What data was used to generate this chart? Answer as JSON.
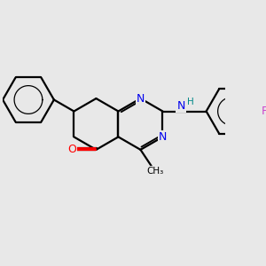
{
  "background_color": "#e8e8e8",
  "line_color": "#000000",
  "bond_width": 1.6,
  "N_color": "#0000ee",
  "O_color": "#ff0000",
  "F_color": "#cc44cc",
  "H_color": "#008888",
  "figsize": [
    3.0,
    3.0
  ],
  "dpi": 100,
  "xlim": [
    0,
    10
  ],
  "ylim": [
    0,
    10
  ]
}
